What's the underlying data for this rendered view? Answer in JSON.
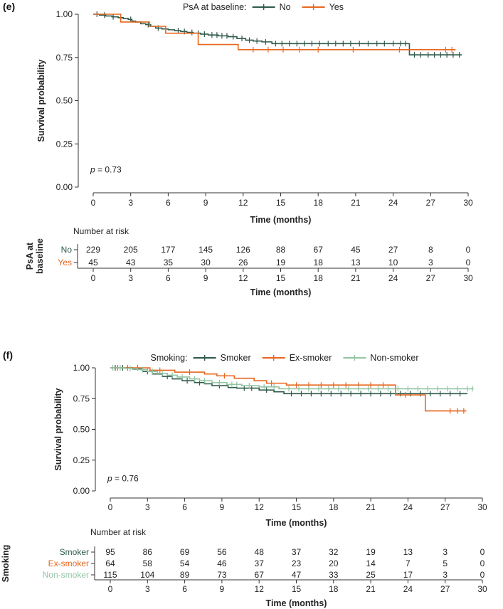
{
  "chart_data": [
    {
      "panel_label": "(e)",
      "type": "line",
      "subtype": "kaplan-meier",
      "legend": {
        "title": "PsA at baseline:",
        "placement": "top",
        "entries": [
          "No",
          "Yes"
        ]
      },
      "ylabel": "Survival probability",
      "xlabel": "Time (months)",
      "ylim": [
        0,
        1
      ],
      "xlim": [
        0,
        30
      ],
      "yticks": [
        "0.00",
        "0.25",
        "0.50",
        "0.75",
        "1.00"
      ],
      "xticks": [
        "0",
        "3",
        "6",
        "9",
        "12",
        "15",
        "18",
        "21",
        "24",
        "27",
        "30"
      ],
      "annotation": {
        "p_label": "p",
        "p_value": "= 0.73"
      },
      "series": [
        {
          "name": "No",
          "color": "#2f5a4a",
          "x": [
            0,
            0.5,
            1.0,
            1.5,
            2.0,
            2.4,
            2.8,
            3.1,
            3.4,
            3.8,
            4.2,
            4.6,
            5.0,
            5.5,
            6.0,
            6.5,
            7.0,
            7.5,
            8.0,
            8.6,
            9.2,
            10.0,
            10.8,
            11.5,
            12.2,
            12.8,
            13.5,
            14.3,
            25.3,
            29.5
          ],
          "y": [
            1.0,
            0.995,
            0.99,
            0.985,
            0.98,
            0.975,
            0.97,
            0.96,
            0.955,
            0.945,
            0.94,
            0.93,
            0.92,
            0.915,
            0.91,
            0.905,
            0.9,
            0.895,
            0.89,
            0.885,
            0.88,
            0.875,
            0.87,
            0.86,
            0.85,
            0.845,
            0.84,
            0.83,
            0.765,
            0.765
          ],
          "censor_x": [
            0.3,
            0.9,
            1.6,
            2.2,
            3.0,
            4.4,
            5.2,
            6.8,
            7.3,
            7.9,
            8.4,
            8.9,
            9.5,
            9.9,
            10.3,
            10.7,
            11.2,
            11.9,
            12.5,
            13.1,
            13.8,
            14.6,
            15.1,
            15.7,
            16.3,
            16.9,
            17.5,
            18.1,
            18.8,
            19.4,
            20.0,
            20.6,
            21.3,
            22.0,
            22.7,
            23.3,
            24.0,
            24.6,
            25.0,
            25.7,
            26.2,
            26.8,
            27.3,
            27.8,
            28.3,
            28.8,
            29.3
          ]
        },
        {
          "name": "Yes",
          "color": "#e8661f",
          "x": [
            0,
            2.2,
            4.5,
            5.8,
            8.4,
            11.6,
            29
          ],
          "y": [
            1.0,
            0.955,
            0.93,
            0.89,
            0.825,
            0.795,
            0.795
          ],
          "censor_x": [
            12.8,
            14.0,
            15.2,
            16.5,
            18.0,
            20.8,
            24.5,
            28.2,
            28.7
          ]
        }
      ],
      "risk_table": {
        "title": "Number at risk",
        "group_label_line1": "PsA at",
        "group_label_line2": "baseline",
        "xlabel": "Time (months)",
        "rows": [
          {
            "label": "No",
            "color": "#2f5a4a",
            "values": [
              "229",
              "205",
              "177",
              "145",
              "126",
              "88",
              "67",
              "45",
              "27",
              "8",
              "0"
            ]
          },
          {
            "label": "Yes",
            "color": "#e8661f",
            "values": [
              "45",
              "43",
              "35",
              "30",
              "26",
              "19",
              "18",
              "13",
              "10",
              "3",
              "0"
            ]
          }
        ]
      }
    },
    {
      "panel_label": "(f)",
      "type": "line",
      "subtype": "kaplan-meier",
      "legend": {
        "title": "Smoking:",
        "placement": "top",
        "entries": [
          "Smoker",
          "Ex-smoker",
          "Non-smoker"
        ]
      },
      "ylabel": "Survival probability",
      "xlabel": "Time (months)",
      "ylim": [
        0,
        1
      ],
      "xlim": [
        0,
        30
      ],
      "yticks": [
        "0.00",
        "0.25",
        "0.50",
        "0.75",
        "1.00"
      ],
      "xticks": [
        "0",
        "3",
        "6",
        "9",
        "12",
        "15",
        "18",
        "21",
        "24",
        "27",
        "30"
      ],
      "annotation": {
        "p_label": "p",
        "p_value": "= 0.76"
      },
      "series": [
        {
          "name": "Smoker",
          "color": "#2f5a4a",
          "x": [
            0,
            1.8,
            2.6,
            3.4,
            4.2,
            5.0,
            5.8,
            6.8,
            7.6,
            8.2,
            9.5,
            10.2,
            12.0,
            13.2,
            14.0,
            28.8
          ],
          "y": [
            1.0,
            0.99,
            0.97,
            0.95,
            0.93,
            0.91,
            0.895,
            0.88,
            0.87,
            0.855,
            0.84,
            0.835,
            0.82,
            0.805,
            0.79,
            0.79
          ],
          "censor_x": [
            0.4,
            1.0,
            3.0,
            4.6,
            6.2,
            7.2,
            8.8,
            10.8,
            11.4,
            12.6,
            14.6,
            15.4,
            16.2,
            17.0,
            17.8,
            18.6,
            19.4,
            20.2,
            21.0,
            21.8,
            22.6,
            23.4,
            24.2,
            25.0,
            25.8,
            26.6,
            27.4,
            28.2
          ]
        },
        {
          "name": "Ex-smoker",
          "color": "#e8661f",
          "x": [
            0,
            3.2,
            5.2,
            7.6,
            8.6,
            10.0,
            11.6,
            12.6,
            14.2,
            23.0,
            25.4,
            28.7
          ],
          "y": [
            1.0,
            0.98,
            0.965,
            0.95,
            0.935,
            0.915,
            0.895,
            0.875,
            0.86,
            0.78,
            0.65,
            0.65
          ],
          "censor_x": [
            0.6,
            1.4,
            2.2,
            4.0,
            6.4,
            9.2,
            13.0,
            15.0,
            16.0,
            17.0,
            18.0,
            19.0,
            20.0,
            21.0,
            22.0,
            23.8,
            27.4,
            28.0,
            28.5
          ]
        },
        {
          "name": "Non-smoker",
          "color": "#93c5a4",
          "x": [
            0,
            1.2,
            2.2,
            3.0,
            3.8,
            4.6,
            5.4,
            6.4,
            7.2,
            8.2,
            9.4,
            10.6,
            12.0,
            13.6,
            29.3
          ],
          "y": [
            1.0,
            0.995,
            0.985,
            0.97,
            0.955,
            0.94,
            0.925,
            0.91,
            0.895,
            0.88,
            0.865,
            0.855,
            0.845,
            0.83,
            0.83
          ],
          "censor_x": [
            0.2,
            0.8,
            1.6,
            2.6,
            3.4,
            4.2,
            5.0,
            5.8,
            6.8,
            7.6,
            8.8,
            9.8,
            10.2,
            11.2,
            12.4,
            13.2,
            14.4,
            15.2,
            16.0,
            16.8,
            17.6,
            18.4,
            19.2,
            20.0,
            20.8,
            21.6,
            22.4,
            23.2,
            24.0,
            24.8,
            25.6,
            26.4,
            27.2,
            28.0,
            28.8,
            29.2
          ]
        }
      ],
      "risk_table": {
        "title": "Number at risk",
        "group_label": "Smoking",
        "xlabel": "Time (months)",
        "rows": [
          {
            "label": "Smoker",
            "color": "#2f5a4a",
            "values": [
              "95",
              "86",
              "69",
              "56",
              "48",
              "37",
              "32",
              "19",
              "13",
              "3",
              "0"
            ]
          },
          {
            "label": "Ex-smoker",
            "color": "#e8661f",
            "values": [
              "64",
              "58",
              "54",
              "46",
              "37",
              "23",
              "20",
              "14",
              "7",
              "5",
              "0"
            ]
          },
          {
            "label": "Non-smoker",
            "color": "#93c5a4",
            "values": [
              "115",
              "104",
              "89",
              "73",
              "67",
              "47",
              "33",
              "25",
              "17",
              "3",
              "0"
            ]
          }
        ]
      }
    }
  ]
}
